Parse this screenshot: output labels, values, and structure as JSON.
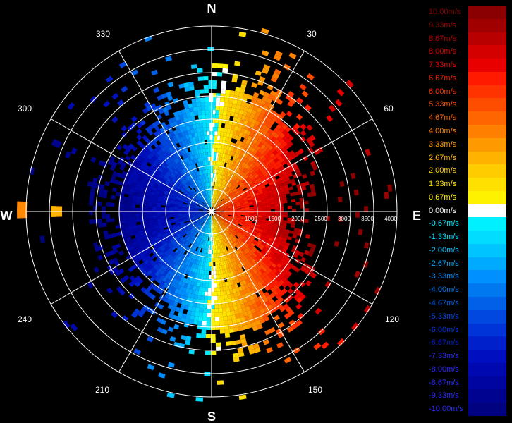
{
  "compass": {
    "north": "N",
    "east": "E",
    "south": "S",
    "west": "W",
    "bearings": [
      "30",
      "60",
      "120",
      "150",
      "210",
      "240",
      "300",
      "330"
    ]
  },
  "range_labels": [
    "1000",
    "1500",
    "2000",
    "2500",
    "3000",
    "3500",
    "4000"
  ],
  "velocity_legend": [
    {
      "label": "10.00m/s",
      "color": "#8a0000"
    },
    {
      "label": "9.33m/s",
      "color": "#a00000"
    },
    {
      "label": "8.67m/s",
      "color": "#b80000"
    },
    {
      "label": "8.00m/s",
      "color": "#d40000"
    },
    {
      "label": "7.33m/s",
      "color": "#e80000"
    },
    {
      "label": "6.67m/s",
      "color": "#ff1a00"
    },
    {
      "label": "6.00m/s",
      "color": "#ff3300"
    },
    {
      "label": "5.33m/s",
      "color": "#ff4d00"
    },
    {
      "label": "4.67m/s",
      "color": "#ff6600"
    },
    {
      "label": "4.00m/s",
      "color": "#ff8000"
    },
    {
      "label": "3.33m/s",
      "color": "#ff9900"
    },
    {
      "label": "2.67m/s",
      "color": "#ffb300"
    },
    {
      "label": "2.00m/s",
      "color": "#ffcc00"
    },
    {
      "label": "1.33m/s",
      "color": "#ffe000"
    },
    {
      "label": "0.67m/s",
      "color": "#fff200"
    },
    {
      "label": "0.00m/s",
      "color": "#ffffff"
    },
    {
      "label": "-0.67m/s",
      "color": "#00f0ff"
    },
    {
      "label": "-1.33m/s",
      "color": "#00ddff"
    },
    {
      "label": "-2.00m/s",
      "color": "#00c4ff"
    },
    {
      "label": "-2.67m/s",
      "color": "#00aaff"
    },
    {
      "label": "-3.33m/s",
      "color": "#0090ff"
    },
    {
      "label": "-4.00m/s",
      "color": "#0078f0"
    },
    {
      "label": "-4.67m/s",
      "color": "#0060e8"
    },
    {
      "label": "-5.33m/s",
      "color": "#0048e0"
    },
    {
      "label": "-6.00m/s",
      "color": "#0034d8"
    },
    {
      "label": "-6.67m/s",
      "color": "#0020cc"
    },
    {
      "label": "-7.33m/s",
      "color": "#0010c0"
    },
    {
      "label": "-8.00m/s",
      "color": "#0008b0"
    },
    {
      "label": "-8.67m/s",
      "color": "#0004a0"
    },
    {
      "label": "-9.33m/s",
      "color": "#000390"
    },
    {
      "label": "-10.00m/s",
      "color": "#000280"
    }
  ]
}
